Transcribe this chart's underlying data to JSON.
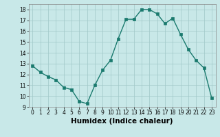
{
  "x": [
    0,
    1,
    2,
    3,
    4,
    5,
    6,
    7,
    8,
    9,
    10,
    11,
    12,
    13,
    14,
    15,
    16,
    17,
    18,
    19,
    20,
    21,
    22,
    23
  ],
  "y": [
    12.8,
    12.2,
    11.8,
    11.5,
    10.8,
    10.6,
    9.5,
    9.3,
    11.0,
    12.4,
    13.3,
    15.3,
    17.1,
    17.1,
    18.0,
    18.0,
    17.6,
    16.7,
    17.2,
    15.7,
    14.3,
    13.3,
    12.6,
    9.8
  ],
  "line_color": "#1a7a6e",
  "marker_color": "#1a7a6e",
  "bg_color": "#c8e8e8",
  "grid_color": "#a0c8c8",
  "xlabel": "Humidex (Indice chaleur)",
  "xlim": [
    -0.5,
    23.5
  ],
  "ylim": [
    9,
    18.5
  ],
  "yticks": [
    9,
    10,
    11,
    12,
    13,
    14,
    15,
    16,
    17,
    18
  ],
  "xticks": [
    0,
    1,
    2,
    3,
    4,
    5,
    6,
    7,
    8,
    9,
    10,
    11,
    12,
    13,
    14,
    15,
    16,
    17,
    18,
    19,
    20,
    21,
    22,
    23
  ],
  "tick_fontsize": 5.5,
  "xlabel_fontsize": 7.5
}
